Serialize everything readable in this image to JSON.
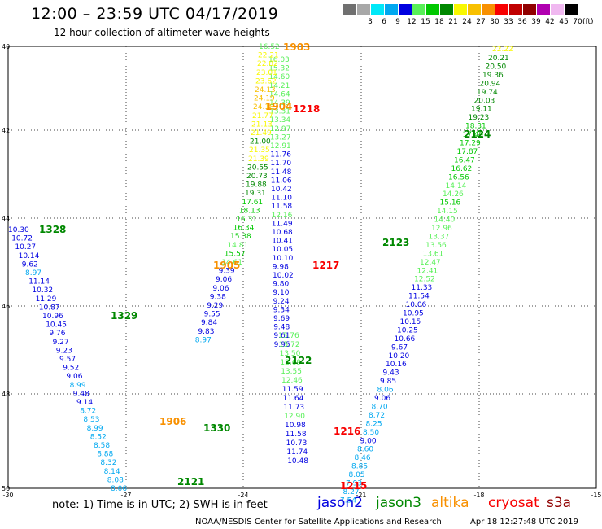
{
  "header": {
    "title": "12:00 – 23:59 UTC 04/17/2019",
    "subtitle": "12 hour collection of altimeter wave heights"
  },
  "legend": {
    "unit": "(ft)",
    "items": [
      {
        "label": "",
        "color": "#707070"
      },
      {
        "label": "3",
        "color": "#a8a8a8"
      },
      {
        "label": "6",
        "color": "#00e8f8"
      },
      {
        "label": "9",
        "color": "#00a8f0"
      },
      {
        "label": "12",
        "color": "#0000e0"
      },
      {
        "label": "15",
        "color": "#58f058"
      },
      {
        "label": "18",
        "color": "#00c800"
      },
      {
        "label": "21",
        "color": "#008800"
      },
      {
        "label": "24",
        "color": "#f8f800"
      },
      {
        "label": "27",
        "color": "#f8c000"
      },
      {
        "label": "30",
        "color": "#f89000"
      },
      {
        "label": "33",
        "color": "#f80000"
      },
      {
        "label": "36",
        "color": "#c00000"
      },
      {
        "label": "39",
        "color": "#900000"
      },
      {
        "label": "42",
        "color": "#b000b0"
      },
      {
        "label": "45",
        "color": "#f0b8f0"
      },
      {
        "label": "70",
        "color": "#000000"
      }
    ]
  },
  "map": {
    "lat_ticks": [
      "40",
      "42",
      "44",
      "46",
      "48",
      "50"
    ],
    "lon_ticks": [
      "-30",
      "-27",
      "-24",
      "-21",
      "-18",
      "-15"
    ],
    "time_labels": [
      {
        "text": "1903",
        "color": "#f89000"
      },
      {
        "text": "1904",
        "color": "#f89000"
      },
      {
        "text": "1218",
        "color": "#f80000"
      },
      {
        "text": "2124",
        "color": "#008800"
      },
      {
        "text": "1328",
        "color": "#008800"
      },
      {
        "text": "2123",
        "color": "#008800"
      },
      {
        "text": "1905",
        "color": "#f89000"
      },
      {
        "text": "1217",
        "color": "#f80000"
      },
      {
        "text": "1329",
        "color": "#008800"
      },
      {
        "text": "2122",
        "color": "#008800"
      },
      {
        "text": "1906",
        "color": "#f89000"
      },
      {
        "text": "1330",
        "color": "#008800"
      },
      {
        "text": "1216",
        "color": "#f80000"
      },
      {
        "text": "2121",
        "color": "#008800"
      },
      {
        "text": "1215",
        "color": "#f80000"
      }
    ],
    "tracks": [
      {
        "name": "altika-1903",
        "values": [
          {
            "t": "16.52",
            "c": "#58f058"
          },
          {
            "t": "16.03",
            "c": "#58f058"
          },
          {
            "t": "22.21",
            "c": "#f8f800"
          },
          {
            "t": "15.32",
            "c": "#58f058"
          },
          {
            "t": "22.82",
            "c": "#f8f800"
          },
          {
            "t": "14.60",
            "c": "#58f058"
          },
          {
            "t": "23.01",
            "c": "#f8f800"
          },
          {
            "t": "14.21",
            "c": "#58f058"
          },
          {
            "t": "23.62",
            "c": "#f8f800"
          },
          {
            "t": "14.64",
            "c": "#58f058"
          },
          {
            "t": "24.13",
            "c": "#f8c000"
          },
          {
            "t": "14.39",
            "c": "#58f058"
          },
          {
            "t": "24.19",
            "c": "#f8c000"
          },
          {
            "t": "13.31",
            "c": "#58f058"
          },
          {
            "t": "24.18",
            "c": "#f8c000"
          },
          {
            "t": "13.34",
            "c": "#58f058"
          },
          {
            "t": "21.77",
            "c": "#f8f800"
          },
          {
            "t": "12.97",
            "c": "#58f058"
          },
          {
            "t": "21.13",
            "c": "#f8f800"
          },
          {
            "t": "13.27",
            "c": "#58f058"
          },
          {
            "t": "21.49",
            "c": "#f8f800"
          },
          {
            "t": "12.91",
            "c": "#58f058"
          },
          {
            "t": "21.00",
            "c": "#008800"
          },
          {
            "t": "11.76",
            "c": "#0000e0"
          },
          {
            "t": "21.35",
            "c": "#f8f800"
          },
          {
            "t": "11.70",
            "c": "#0000e0"
          },
          {
            "t": "21.39",
            "c": "#f8f800"
          },
          {
            "t": "11.48",
            "c": "#0000e0"
          },
          {
            "t": "20.55",
            "c": "#008800"
          },
          {
            "t": "11.06",
            "c": "#0000e0"
          },
          {
            "t": "20.73",
            "c": "#008800"
          },
          {
            "t": "10.42",
            "c": "#0000e0"
          },
          {
            "t": "19.88",
            "c": "#008800"
          },
          {
            "t": "11.10",
            "c": "#0000e0"
          },
          {
            "t": "19.31",
            "c": "#008800"
          },
          {
            "t": "11.58",
            "c": "#0000e0"
          },
          {
            "t": "17.61",
            "c": "#00c800"
          },
          {
            "t": "12.16",
            "c": "#58f058"
          },
          {
            "t": "18.13",
            "c": "#00c800"
          },
          {
            "t": "11.49",
            "c": "#0000e0"
          },
          {
            "t": "16.31",
            "c": "#00c800"
          },
          {
            "t": "10.68",
            "c": "#0000e0"
          },
          {
            "t": "16.34",
            "c": "#00c800"
          },
          {
            "t": "10.41",
            "c": "#0000e0"
          },
          {
            "t": "15.38",
            "c": "#00c800"
          },
          {
            "t": "10.05",
            "c": "#0000e0"
          },
          {
            "t": "14.81",
            "c": "#58f058"
          },
          {
            "t": "10.10",
            "c": "#0000e0"
          },
          {
            "t": "15.57",
            "c": "#00c800"
          },
          {
            "t": "9.98",
            "c": "#0000e0"
          },
          {
            "t": "14.61",
            "c": "#58f058"
          },
          {
            "t": "10.02",
            "c": "#0000e0"
          },
          {
            "t": "9.39",
            "c": "#0000e0"
          },
          {
            "t": "9.80",
            "c": "#0000e0"
          },
          {
            "t": "9.06",
            "c": "#0000e0"
          },
          {
            "t": "9.10",
            "c": "#0000e0"
          },
          {
            "t": "9.06",
            "c": "#0000e0"
          },
          {
            "t": "9.24",
            "c": "#0000e0"
          },
          {
            "t": "9.38",
            "c": "#0000e0"
          },
          {
            "t": "9.34",
            "c": "#0000e0"
          },
          {
            "t": "9.29",
            "c": "#0000e0"
          },
          {
            "t": "9.69",
            "c": "#0000e0"
          },
          {
            "t": "9.55",
            "c": "#0000e0"
          },
          {
            "t": "9.48",
            "c": "#0000e0"
          },
          {
            "t": "9.84",
            "c": "#0000e0"
          },
          {
            "t": "9.61",
            "c": "#0000e0"
          },
          {
            "t": "9.83",
            "c": "#0000e0"
          },
          {
            "t": "9.95",
            "c": "#0000e0"
          },
          {
            "t": "8.97",
            "c": "#00a8f0"
          }
        ]
      },
      {
        "name": "jason3-2124",
        "values": [
          {
            "t": "20.21",
            "c": "#008800"
          },
          {
            "t": "20.50",
            "c": "#008800"
          },
          {
            "t": "19.36",
            "c": "#008800"
          },
          {
            "t": "20.94",
            "c": "#008800"
          },
          {
            "t": "19.74",
            "c": "#008800"
          },
          {
            "t": "20.03",
            "c": "#008800"
          },
          {
            "t": "19.11",
            "c": "#008800"
          },
          {
            "t": "19.23",
            "c": "#008800"
          },
          {
            "t": "18.31",
            "c": "#00c800"
          },
          {
            "t": "17.49",
            "c": "#00c800"
          },
          {
            "t": "17.29",
            "c": "#00c800"
          },
          {
            "t": "17.87",
            "c": "#00c800"
          },
          {
            "t": "16.47",
            "c": "#00c800"
          },
          {
            "t": "16.62",
            "c": "#00c800"
          },
          {
            "t": "16.56",
            "c": "#00c800"
          },
          {
            "t": "14.14",
            "c": "#58f058"
          },
          {
            "t": "14.26",
            "c": "#58f058"
          },
          {
            "t": "15.16",
            "c": "#00c800"
          },
          {
            "t": "14.15",
            "c": "#58f058"
          },
          {
            "t": "14.40",
            "c": "#58f058"
          },
          {
            "t": "12.96",
            "c": "#58f058"
          },
          {
            "t": "13.37",
            "c": "#58f058"
          },
          {
            "t": "13.56",
            "c": "#58f058"
          },
          {
            "t": "13.61",
            "c": "#58f058"
          },
          {
            "t": "12.47",
            "c": "#58f058"
          },
          {
            "t": "12.41",
            "c": "#58f058"
          },
          {
            "t": "12.52",
            "c": "#58f058"
          },
          {
            "t": "11.33",
            "c": "#0000e0"
          },
          {
            "t": "11.54",
            "c": "#0000e0"
          },
          {
            "t": "10.06",
            "c": "#0000e0"
          },
          {
            "t": "10.95",
            "c": "#0000e0"
          },
          {
            "t": "10.15",
            "c": "#0000e0"
          },
          {
            "t": "10.25",
            "c": "#0000e0"
          },
          {
            "t": "10.66",
            "c": "#0000e0"
          },
          {
            "t": "9.67",
            "c": "#0000e0"
          },
          {
            "t": "10.20",
            "c": "#0000e0"
          },
          {
            "t": "10.16",
            "c": "#0000e0"
          },
          {
            "t": "9.43",
            "c": "#0000e0"
          },
          {
            "t": "9.85",
            "c": "#0000e0"
          },
          {
            "t": "8.06",
            "c": "#00a8f0"
          },
          {
            "t": "9.06",
            "c": "#0000e0"
          },
          {
            "t": "8.70",
            "c": "#00a8f0"
          },
          {
            "t": "8.72",
            "c": "#00a8f0"
          },
          {
            "t": "8.25",
            "c": "#00a8f0"
          },
          {
            "t": "8.50",
            "c": "#00a8f0"
          },
          {
            "t": "9.00",
            "c": "#0000e0"
          },
          {
            "t": "8.60",
            "c": "#00a8f0"
          },
          {
            "t": "8.46",
            "c": "#00a8f0"
          },
          {
            "t": "8.85",
            "c": "#00a8f0"
          },
          {
            "t": "8.05",
            "c": "#00a8f0"
          },
          {
            "t": "7.93",
            "c": "#00a8f0"
          },
          {
            "t": "8.27",
            "c": "#00a8f0"
          },
          {
            "t": "7.54",
            "c": "#00a8f0"
          }
        ]
      },
      {
        "name": "jason3-1328",
        "values": [
          {
            "t": "10.30",
            "c": "#0000e0"
          },
          {
            "t": "10.72",
            "c": "#0000e0"
          },
          {
            "t": "10.27",
            "c": "#0000e0"
          },
          {
            "t": "10.14",
            "c": "#0000e0"
          },
          {
            "t": "9.62",
            "c": "#0000e0"
          },
          {
            "t": "8.97",
            "c": "#00a8f0"
          },
          {
            "t": "11.14",
            "c": "#0000e0"
          },
          {
            "t": "10.32",
            "c": "#0000e0"
          },
          {
            "t": "11.29",
            "c": "#0000e0"
          },
          {
            "t": "10.87",
            "c": "#0000e0"
          },
          {
            "t": "10.96",
            "c": "#0000e0"
          },
          {
            "t": "10.45",
            "c": "#0000e0"
          },
          {
            "t": "9.76",
            "c": "#0000e0"
          },
          {
            "t": "9.27",
            "c": "#0000e0"
          },
          {
            "t": "9.23",
            "c": "#0000e0"
          },
          {
            "t": "9.57",
            "c": "#0000e0"
          },
          {
            "t": "9.52",
            "c": "#0000e0"
          },
          {
            "t": "9.06",
            "c": "#0000e0"
          },
          {
            "t": "8.99",
            "c": "#00a8f0"
          },
          {
            "t": "9.48",
            "c": "#0000e0"
          },
          {
            "t": "9.14",
            "c": "#0000e0"
          },
          {
            "t": "8.72",
            "c": "#00a8f0"
          },
          {
            "t": "8.53",
            "c": "#00a8f0"
          },
          {
            "t": "8.99",
            "c": "#00a8f0"
          },
          {
            "t": "8.52",
            "c": "#00a8f0"
          },
          {
            "t": "8.58",
            "c": "#00a8f0"
          },
          {
            "t": "8.88",
            "c": "#00a8f0"
          },
          {
            "t": "8.32",
            "c": "#00a8f0"
          },
          {
            "t": "8.14",
            "c": "#00a8f0"
          },
          {
            "t": "8.08",
            "c": "#00a8f0"
          },
          {
            "t": "8.06",
            "c": "#00a8f0"
          }
        ]
      },
      {
        "name": "cryosat-1218",
        "values": [
          {
            "t": "15.76",
            "c": "#58f058"
          },
          {
            "t": "15.72",
            "c": "#58f058"
          },
          {
            "t": "13.50",
            "c": "#58f058"
          },
          {
            "t": "12.69",
            "c": "#58f058"
          },
          {
            "t": "13.55",
            "c": "#58f058"
          },
          {
            "t": "12.46",
            "c": "#58f058"
          },
          {
            "t": "11.59",
            "c": "#0000e0"
          },
          {
            "t": "11.64",
            "c": "#0000e0"
          },
          {
            "t": "11.73",
            "c": "#0000e0"
          },
          {
            "t": "12.90",
            "c": "#58f058"
          },
          {
            "t": "10.98",
            "c": "#0000e0"
          },
          {
            "t": "11.58",
            "c": "#0000e0"
          },
          {
            "t": "10.73",
            "c": "#0000e0"
          },
          {
            "t": "11.74",
            "c": "#0000e0"
          },
          {
            "t": "10.48",
            "c": "#0000e0"
          }
        ]
      },
      {
        "name": "altika-1903-top",
        "values": [
          {
            "t": "22.22",
            "c": "#f8f800"
          }
        ]
      }
    ]
  },
  "footer": {
    "note": "note:  1) Time is in UTC;  2) SWH is in feet",
    "satellites": [
      {
        "name": "jason2",
        "color": "#0000e0"
      },
      {
        "name": "jason3",
        "color": "#008800"
      },
      {
        "name": "altika",
        "color": "#f89000"
      },
      {
        "name": "cryosat",
        "color": "#f80000"
      },
      {
        "name": "s3a",
        "color": "#900000"
      }
    ],
    "credit": "NOAA/NESDIS Center for Satellite Applications and Research",
    "timestamp": "Apr 18 12:27:48 UTC 2019"
  }
}
